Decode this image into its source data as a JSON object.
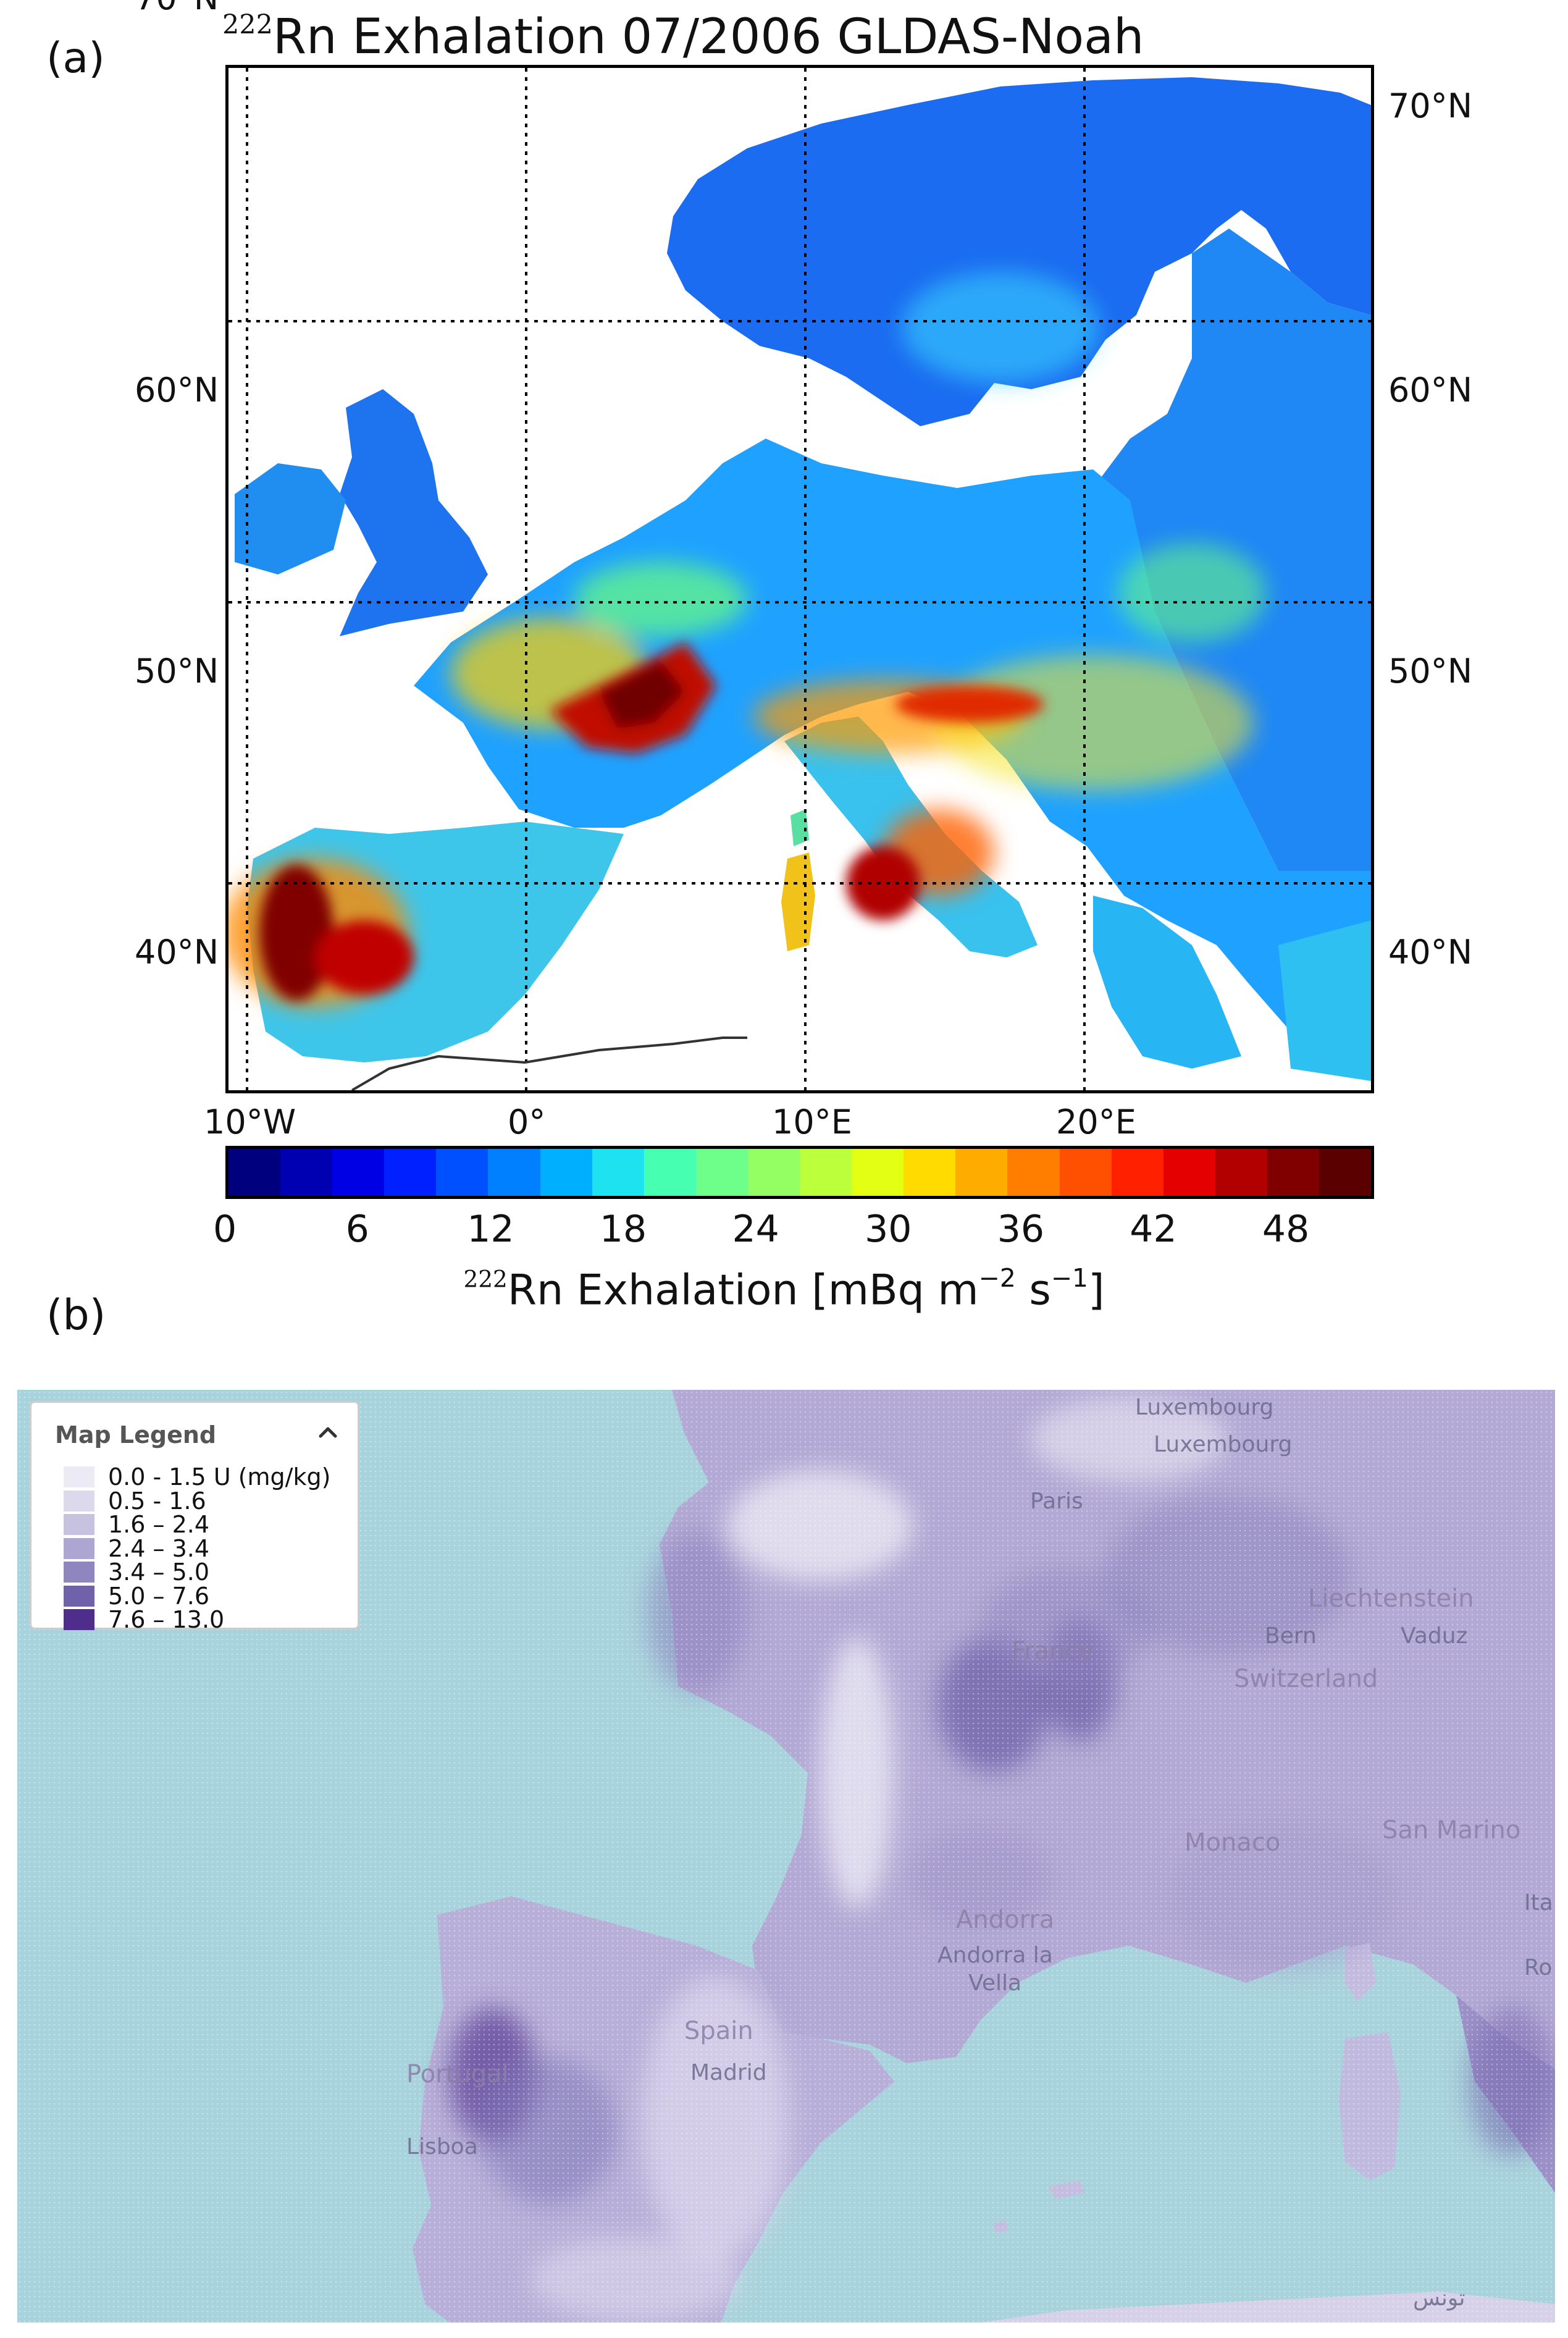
{
  "panel_a": {
    "label": "(a)",
    "title_sup": "222",
    "title_rest": "Rn Exhalation  07/2006 GLDAS-Noah",
    "lat_labels": [
      "70°N",
      "60°N",
      "50°N",
      "40°N"
    ],
    "lon_labels": [
      "10°W",
      "0°",
      "10°E",
      "20°E"
    ],
    "colorbar": {
      "ticks": [
        "0",
        "6",
        "12",
        "18",
        "24",
        "30",
        "36",
        "42",
        "48"
      ],
      "title_sup": "222",
      "title_rest": "Rn Exhalation  [mBq m",
      "title_exp1": "−2",
      "title_mid": " s",
      "title_exp2": "−1",
      "title_end": "]",
      "colors": [
        "#00007f",
        "#0000b2",
        "#0000e5",
        "#0020ff",
        "#0050ff",
        "#0080ff",
        "#00b0ff",
        "#1ee2f0",
        "#46ffb1",
        "#6dff8a",
        "#94ff62",
        "#bcff3b",
        "#e3ff13",
        "#ffdb00",
        "#ffac00",
        "#ff7e00",
        "#ff4f00",
        "#ff2000",
        "#e50000",
        "#b20000",
        "#800000",
        "#5a0000"
      ]
    }
  },
  "panel_b": {
    "label": "(b)",
    "legend": {
      "title": "Map Legend",
      "items": [
        {
          "label": "0.0 - 1.5 U (mg/kg)",
          "color": "#eceaf4"
        },
        {
          "label": "0.5 - 1.6",
          "color": "#dcd9ec"
        },
        {
          "label": "1.6 – 2.4",
          "color": "#c7c2e0"
        },
        {
          "label": "2.4 – 3.4",
          "color": "#ada6d2"
        },
        {
          "label": "3.4 – 5.0",
          "color": "#8f86c0"
        },
        {
          "label": "5.0 – 7.6",
          "color": "#6f62aa"
        },
        {
          "label": "7.6 – 13.0",
          "color": "#4e2d8c"
        }
      ]
    },
    "places": {
      "luxembourg_country": "Luxembourg",
      "luxembourg_city": "Luxembourg",
      "paris": "Paris",
      "liechtenstein": "Liechtenstein",
      "bern": "Bern",
      "vaduz": "Vaduz",
      "france": "France",
      "switzerland": "Switzerland",
      "monaco": "Monaco",
      "san_marino": "San Marino",
      "andorra": "Andorra",
      "andorra_la_vella_1": "Andorra la",
      "andorra_la_vella_2": "Vella",
      "spain": "Spain",
      "madrid": "Madrid",
      "portugal": "Portugal",
      "lisboa": "Lisboa",
      "italy_partial": "Ita",
      "roma_partial": "Ro",
      "tunis": "تونس"
    }
  }
}
